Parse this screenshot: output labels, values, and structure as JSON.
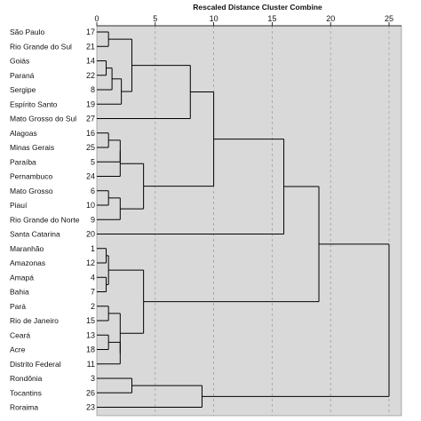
{
  "chart_data": {
    "type": "dendrogram",
    "title": "Rescaled Distance Cluster Combine",
    "x_ticks": [
      0,
      5,
      10,
      15,
      20,
      25
    ],
    "xlim": [
      0,
      25
    ],
    "grid": true,
    "leaves": [
      {
        "label": "São Paulo",
        "id": "17"
      },
      {
        "label": "Rio Grande do Sul",
        "id": "21"
      },
      {
        "label": "Goiás",
        "id": "14"
      },
      {
        "label": "Paraná",
        "id": "22"
      },
      {
        "label": "Sergipe",
        "id": "8"
      },
      {
        "label": "Espírito Santo",
        "id": "19"
      },
      {
        "label": "Mato Grosso do Sul",
        "id": "27"
      },
      {
        "label": "Alagoas",
        "id": "16"
      },
      {
        "label": "Minas Gerais",
        "id": "25"
      },
      {
        "label": "Paraíba",
        "id": "5"
      },
      {
        "label": "Pernambuco",
        "id": "24"
      },
      {
        "label": "Mato Grosso",
        "id": "6"
      },
      {
        "label": "Piauí",
        "id": "10"
      },
      {
        "label": "Rio Grande do Norte",
        "id": "9"
      },
      {
        "label": "Santa Catarina",
        "id": "20"
      },
      {
        "label": "Maranhão",
        "id": "1"
      },
      {
        "label": "Amazonas",
        "id": "12"
      },
      {
        "label": "Amapá",
        "id": "4"
      },
      {
        "label": "Bahia",
        "id": "7"
      },
      {
        "label": "Pará",
        "id": "2"
      },
      {
        "label": "Rio de Janeiro",
        "id": "15"
      },
      {
        "label": "Ceará",
        "id": "13"
      },
      {
        "label": "Acre",
        "id": "18"
      },
      {
        "label": "Distrito Federal",
        "id": "11"
      },
      {
        "label": "Rondônia",
        "id": "3"
      },
      {
        "label": "Tocantins",
        "id": "26"
      },
      {
        "label": "Roraima",
        "id": "23"
      }
    ],
    "merges": [
      {
        "a": 0,
        "b": 1,
        "h": 1.0
      },
      {
        "a": 2,
        "b": 3,
        "h": 0.8
      },
      {
        "a": 28,
        "b": 4,
        "h": 1.3
      },
      {
        "a": 29,
        "b": 5,
        "h": 2.1
      },
      {
        "a": 27,
        "b": 30,
        "h": 3.0
      },
      {
        "a": 31,
        "b": 6,
        "h": 8.0
      },
      {
        "a": 7,
        "b": 8,
        "h": 1.0
      },
      {
        "a": 33,
        "b": 9,
        "h": 2.0
      },
      {
        "a": 34,
        "b": 10,
        "h": 2.0
      },
      {
        "a": 11,
        "b": 12,
        "h": 1.0
      },
      {
        "a": 36,
        "b": 13,
        "h": 2.0
      },
      {
        "a": 35,
        "b": 37,
        "h": 4.0
      },
      {
        "a": 32,
        "b": 38,
        "h": 10.0
      },
      {
        "a": 39,
        "b": 14,
        "h": 16.0
      },
      {
        "a": 15,
        "b": 16,
        "h": 0.8
      },
      {
        "a": 17,
        "b": 18,
        "h": 0.8
      },
      {
        "a": 41,
        "b": 42,
        "h": 1.0
      },
      {
        "a": 19,
        "b": 20,
        "h": 1.0
      },
      {
        "a": 21,
        "b": 22,
        "h": 1.0
      },
      {
        "a": 45,
        "b": 23,
        "h": 2.0
      },
      {
        "a": 44,
        "b": 46,
        "h": 2.0
      },
      {
        "a": 43,
        "b": 47,
        "h": 4.0
      },
      {
        "a": 40,
        "b": 48,
        "h": 19.0
      },
      {
        "a": 24,
        "b": 25,
        "h": 3.0
      },
      {
        "a": 50,
        "b": 26,
        "h": 9.0
      },
      {
        "a": 49,
        "b": 51,
        "h": 25.0
      }
    ]
  },
  "colors": {
    "plot_background": "#d9d9d9",
    "line": "#000000",
    "grid": "#9a9a9a"
  }
}
